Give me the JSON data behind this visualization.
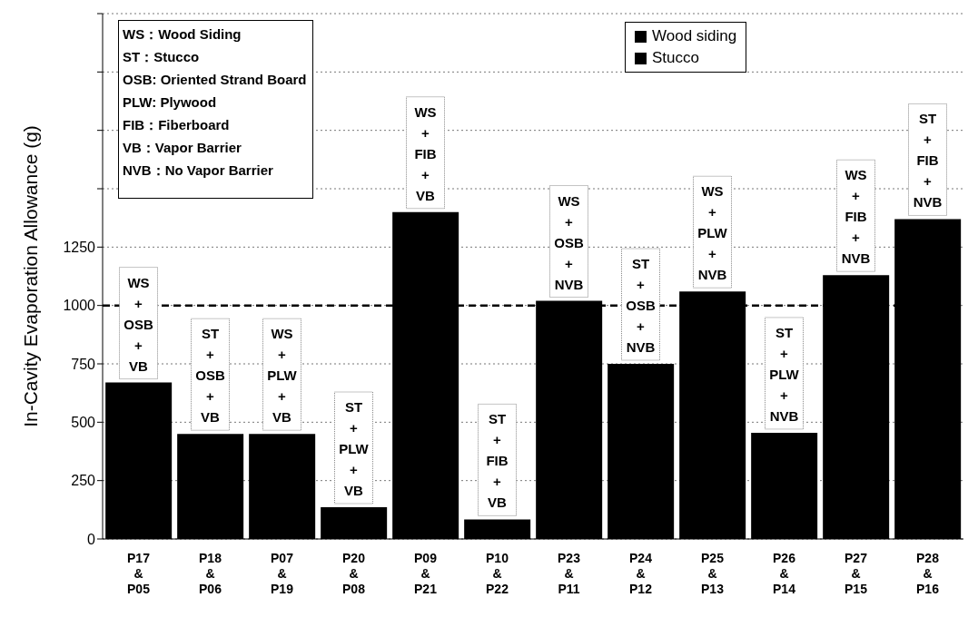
{
  "chart_data": {
    "type": "bar",
    "ylabel": "In-Cavity Evaporation Allowance (g)",
    "categories": [
      "P17\n&\nP05",
      "P18\n&\nP06",
      "P07\n&\nP19",
      "P20\n&\nP08",
      "P09\n&\nP21",
      "P10\n&\nP22",
      "P23\n&\nP11",
      "P24\n&\nP12",
      "P25\n&\nP13",
      "P26\n&\nP14",
      "P27\n&\nP15",
      "P28\n&\nP16"
    ],
    "series": [
      {
        "name": "Wood siding",
        "color": "#000000",
        "values": [
          670,
          null,
          450,
          null,
          1400,
          null,
          1020,
          null,
          1060,
          null,
          1130,
          null
        ]
      },
      {
        "name": "Stucco",
        "color": "#000000",
        "values": [
          null,
          450,
          null,
          136,
          null,
          84,
          null,
          750,
          null,
          455,
          null,
          1370
        ]
      }
    ],
    "ylim": [
      0,
      2250
    ],
    "yticks": [
      0,
      250,
      500,
      750,
      1000,
      1250,
      {
        "value": 1500,
        "label": null
      },
      {
        "value": 1750,
        "label": null
      },
      {
        "value": 2000,
        "label": null
      },
      {
        "value": 2250,
        "label": null
      }
    ],
    "grid": "y",
    "legend": "top right",
    "ref_lines": [
      {
        "axis": "y",
        "value": 1000,
        "label": null,
        "color": "#000000",
        "line_style": "dashed"
      }
    ],
    "annotations": [
      "WS：Wood Siding",
      "ST：Stucco",
      "OSB: Oriented Strand Board",
      "PLW: Plywood",
      "FIB：Fiberboard",
      "VB：Vapor Barrier",
      "NVB：No Vapor Barrier",
      {
        "text": "WS\n+\nOSB\n+\nVB",
        "x": "P17\n&\nP05",
        "y": 670
      },
      {
        "text": "ST\n+\nOSB\n+\nVB",
        "x": "P18\n&\nP06",
        "y": 450
      },
      {
        "text": "WS\n+\nPLW\n+\nVB",
        "x": "P07\n&\nP19",
        "y": 450
      },
      {
        "text": "ST\n+\nPLW\n+\nVB",
        "x": "P20\n&\nP08",
        "y": 136
      },
      {
        "text": "WS\n+\nFIB\n+\nVB",
        "x": "P09\n&\nP21",
        "y": 1400
      },
      {
        "text": "ST\n+\nFIB\n+\nVB",
        "x": "P10\n&\nP22",
        "y": 84
      },
      {
        "text": "WS\n+\nOSB\n+\nNVB",
        "x": "P23\n&\nP11",
        "y": 1020
      },
      {
        "text": "ST\n+\nOSB\n+\nNVB",
        "x": "P24\n&\nP12",
        "y": 750
      },
      {
        "text": "WS\n+\nPLW\n+\nNVB",
        "x": "P25\n&\nP13",
        "y": 1060
      },
      {
        "text": "ST\n+\nPLW\n+\nNVB",
        "x": "P26\n&\nP14",
        "y": 455
      },
      {
        "text": "WS\n+\nFIB\n+\nNVB",
        "x": "P27\n&\nP15",
        "y": 1130
      },
      {
        "text": "ST\n+\nFIB\n+\nNVB",
        "x": "P28\n&\nP16",
        "y": 1370
      }
    ]
  }
}
